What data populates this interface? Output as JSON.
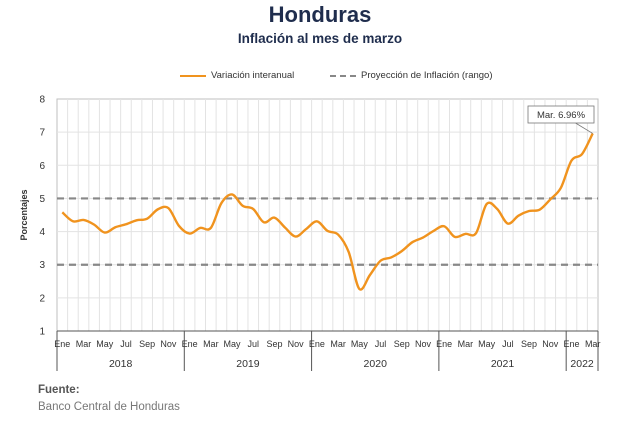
{
  "chart_data": {
    "type": "line",
    "title": "Honduras",
    "subtitle": "Inflación al mes de marzo",
    "ylabel": "Porcentajes",
    "ylim": [
      1,
      8
    ],
    "yticks": [
      1,
      2,
      3,
      4,
      5,
      6,
      7,
      8
    ],
    "grid": true,
    "legend_position": "top",
    "month_labels": [
      "Ene",
      "Mar",
      "May",
      "Jul",
      "Sep",
      "Nov"
    ],
    "month_labels_2022": [
      "Ene",
      "Mar"
    ],
    "years": [
      "2018",
      "2019",
      "2020",
      "2021",
      "2022"
    ],
    "series": [
      {
        "name": "Variación interanual",
        "color": "#f0931e",
        "x": [
          "2018-01",
          "2018-02",
          "2018-03",
          "2018-04",
          "2018-05",
          "2018-06",
          "2018-07",
          "2018-08",
          "2018-09",
          "2018-10",
          "2018-11",
          "2018-12",
          "2019-01",
          "2019-02",
          "2019-03",
          "2019-04",
          "2019-05",
          "2019-06",
          "2019-07",
          "2019-08",
          "2019-09",
          "2019-10",
          "2019-11",
          "2019-12",
          "2020-01",
          "2020-02",
          "2020-03",
          "2020-04",
          "2020-05",
          "2020-06",
          "2020-07",
          "2020-08",
          "2020-09",
          "2020-10",
          "2020-11",
          "2020-12",
          "2021-01",
          "2021-02",
          "2021-03",
          "2021-04",
          "2021-05",
          "2021-06",
          "2021-07",
          "2021-08",
          "2021-09",
          "2021-10",
          "2021-11",
          "2021-12",
          "2022-01",
          "2022-02",
          "2022-03"
        ],
        "values": [
          4.58,
          4.31,
          4.35,
          4.21,
          3.97,
          4.13,
          4.22,
          4.34,
          4.39,
          4.67,
          4.71,
          4.17,
          3.94,
          4.11,
          4.11,
          4.86,
          5.12,
          4.78,
          4.68,
          4.28,
          4.42,
          4.12,
          3.85,
          4.08,
          4.31,
          4.02,
          3.91,
          3.38,
          2.27,
          2.69,
          3.12,
          3.22,
          3.41,
          3.68,
          3.82,
          4.02,
          4.16,
          3.84,
          3.93,
          3.95,
          4.83,
          4.68,
          4.24,
          4.48,
          4.62,
          4.66,
          4.97,
          5.32,
          6.14,
          6.34,
          6.96
        ]
      },
      {
        "name": "Proyección de Inflación (rango)",
        "color": "#888888",
        "bands": [
          3,
          5
        ]
      }
    ],
    "annotation": {
      "text": "Mar. 6.96%",
      "x": "2022-03",
      "y": 6.96
    }
  },
  "source": {
    "label": "Fuente:",
    "value": "Banco Central de Honduras"
  }
}
